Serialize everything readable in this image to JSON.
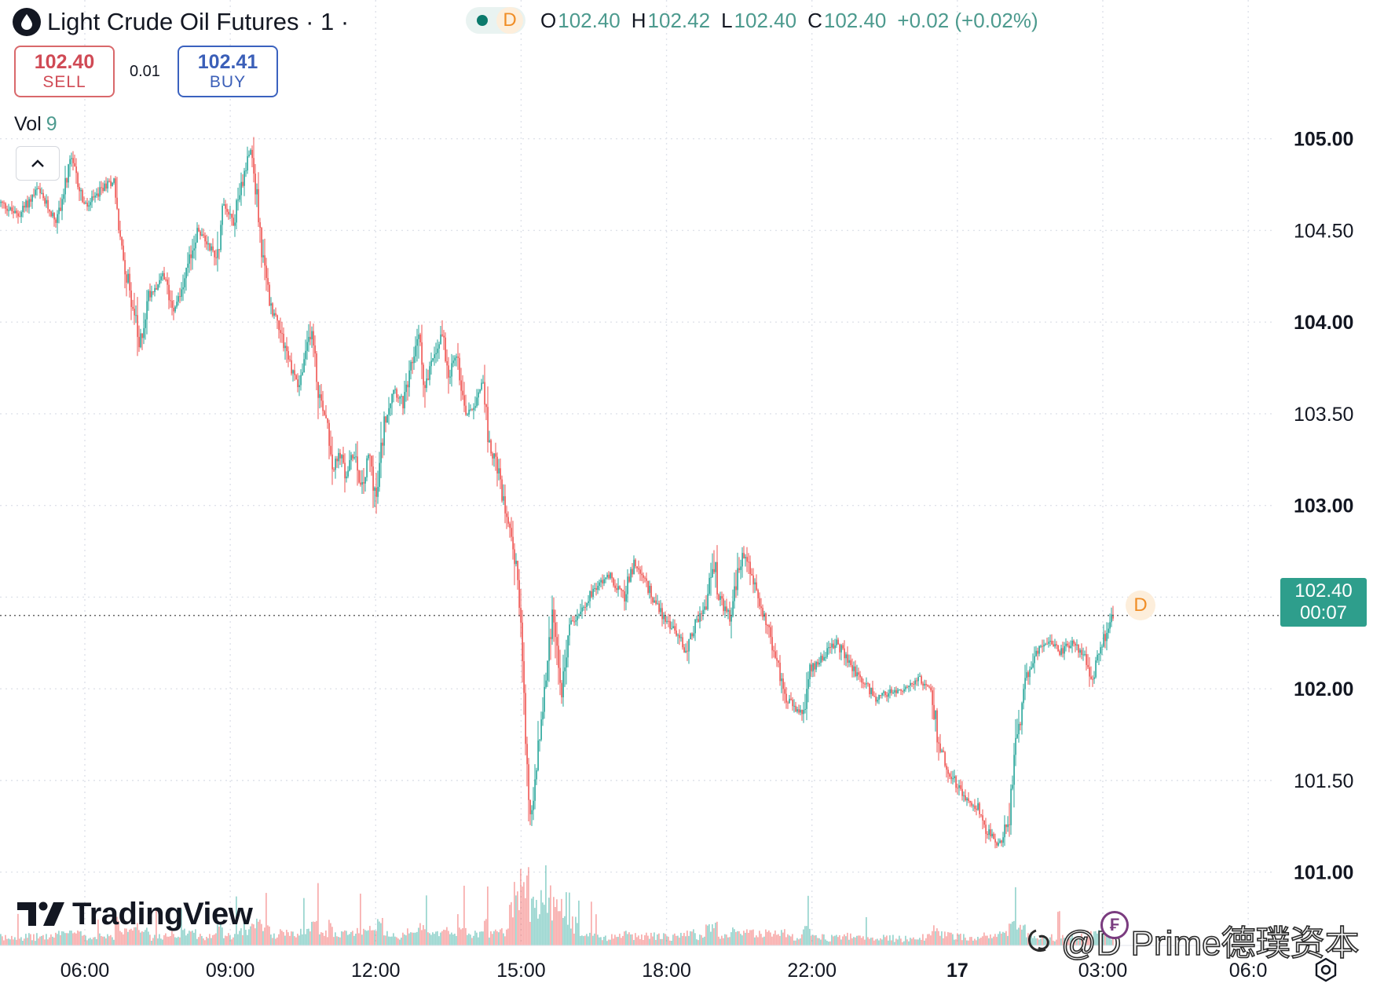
{
  "header": {
    "title": "Light Crude Oil Futures · 1 ·",
    "status_badge": "D",
    "ohlc": {
      "o_label": "O",
      "o": "102.40",
      "h_label": "H",
      "h": "102.42",
      "l_label": "L",
      "l": "102.40",
      "c_label": "C",
      "c": "102.40",
      "change": "+0.02 (+0.02%)"
    }
  },
  "trade": {
    "sell_price": "102.40",
    "sell_label": "SELL",
    "spread": "0.01",
    "buy_price": "102.41",
    "buy_label": "BUY"
  },
  "volume": {
    "label": "Vol",
    "value": "9"
  },
  "last_price": {
    "price": "102.40",
    "countdown": "00:07",
    "marker": "D"
  },
  "branding": {
    "logo_text": "TradingView"
  },
  "watermark": {
    "text": "@D Prime德璞资本"
  },
  "colors": {
    "up": "#26a69a",
    "down": "#ef5350",
    "price_tag": "#2e9e8c",
    "sell": "#d04a55",
    "buy": "#3b5fb8"
  },
  "chart_data": {
    "type": "line",
    "title": "Light Crude Oil Futures · 1",
    "interval": "1 minute",
    "y_ticks": [
      "105.00",
      "104.50",
      "104.00",
      "103.50",
      "103.00",
      "102.50",
      "102.00",
      "101.50",
      "101.00"
    ],
    "y_ticks_bold": [
      "105.00",
      "104.00",
      "103.00",
      "102.00",
      "101.00"
    ],
    "ylim": [
      100.6,
      105.5
    ],
    "x_ticks": [
      "06:00",
      "09:00",
      "12:00",
      "15:00",
      "18:00",
      "22:00",
      "17",
      "03:00",
      "06:0"
    ],
    "x_ticks_bold": [
      "17"
    ],
    "x_tick_hours": [
      6,
      9,
      12,
      15,
      18,
      21,
      24,
      27,
      30
    ],
    "xlim_hours": [
      4.25,
      30.5
    ],
    "grid": true,
    "last_price": 102.4,
    "price_series": {
      "name": "close",
      "points": [
        [
          4.25,
          104.65
        ],
        [
          4.6,
          104.58
        ],
        [
          5.0,
          104.72
        ],
        [
          5.4,
          104.55
        ],
        [
          5.7,
          104.88
        ],
        [
          6.0,
          104.62
        ],
        [
          6.35,
          104.73
        ],
        [
          6.6,
          104.78
        ],
        [
          6.7,
          104.45
        ],
        [
          7.0,
          104.05
        ],
        [
          7.1,
          103.85
        ],
        [
          7.3,
          104.15
        ],
        [
          7.6,
          104.25
        ],
        [
          7.8,
          104.08
        ],
        [
          8.0,
          104.18
        ],
        [
          8.3,
          104.5
        ],
        [
          8.55,
          104.42
        ],
        [
          8.7,
          104.35
        ],
        [
          8.85,
          104.65
        ],
        [
          9.05,
          104.55
        ],
        [
          9.25,
          104.8
        ],
        [
          9.4,
          104.98
        ],
        [
          9.5,
          104.75
        ],
        [
          9.65,
          104.35
        ],
        [
          9.8,
          104.1
        ],
        [
          10.0,
          103.98
        ],
        [
          10.2,
          103.78
        ],
        [
          10.4,
          103.65
        ],
        [
          10.55,
          103.82
        ],
        [
          10.65,
          103.98
        ],
        [
          10.8,
          103.62
        ],
        [
          11.0,
          103.45
        ],
        [
          11.1,
          103.2
        ],
        [
          11.25,
          103.28
        ],
        [
          11.35,
          103.15
        ],
        [
          11.55,
          103.3
        ],
        [
          11.7,
          103.08
        ],
        [
          11.85,
          103.28
        ],
        [
          12.0,
          103.02
        ],
        [
          12.15,
          103.45
        ],
        [
          12.35,
          103.65
        ],
        [
          12.55,
          103.55
        ],
        [
          12.7,
          103.72
        ],
        [
          12.85,
          103.95
        ],
        [
          13.0,
          103.65
        ],
        [
          13.2,
          103.82
        ],
        [
          13.35,
          103.95
        ],
        [
          13.5,
          103.72
        ],
        [
          13.65,
          103.82
        ],
        [
          13.85,
          103.5
        ],
        [
          14.0,
          103.55
        ],
        [
          14.2,
          103.7
        ],
        [
          14.3,
          103.35
        ],
        [
          14.45,
          103.25
        ],
        [
          14.6,
          103.05
        ],
        [
          14.8,
          102.85
        ],
        [
          14.95,
          102.5
        ],
        [
          15.05,
          101.85
        ],
        [
          15.15,
          101.3
        ],
        [
          15.25,
          101.45
        ],
        [
          15.35,
          101.7
        ],
        [
          15.5,
          102.1
        ],
        [
          15.65,
          102.45
        ],
        [
          15.8,
          101.95
        ],
        [
          15.9,
          102.15
        ],
        [
          16.0,
          102.35
        ],
        [
          16.25,
          102.45
        ],
        [
          16.5,
          102.55
        ],
        [
          16.8,
          102.62
        ],
        [
          17.1,
          102.5
        ],
        [
          17.3,
          102.68
        ],
        [
          17.6,
          102.55
        ],
        [
          17.9,
          102.4
        ],
        [
          18.2,
          102.3
        ],
        [
          18.4,
          102.2
        ],
        [
          18.55,
          102.35
        ],
        [
          18.8,
          102.45
        ],
        [
          18.95,
          102.72
        ],
        [
          19.05,
          102.5
        ],
        [
          19.3,
          102.38
        ],
        [
          19.45,
          102.62
        ],
        [
          19.6,
          102.75
        ],
        [
          19.8,
          102.55
        ],
        [
          20.0,
          102.4
        ],
        [
          20.25,
          102.15
        ],
        [
          20.45,
          101.95
        ],
        [
          20.6,
          101.9
        ],
        [
          20.8,
          101.85
        ],
        [
          20.95,
          102.1
        ],
        [
          21.2,
          102.18
        ],
        [
          21.5,
          102.25
        ],
        [
          21.8,
          102.12
        ],
        [
          22.0,
          102.05
        ],
        [
          22.3,
          101.95
        ],
        [
          22.6,
          101.98
        ],
        [
          22.9,
          102.0
        ],
        [
          23.2,
          102.05
        ],
        [
          23.45,
          101.98
        ],
        [
          23.6,
          101.7
        ],
        [
          23.8,
          101.55
        ],
        [
          24.1,
          101.42
        ],
        [
          24.4,
          101.35
        ],
        [
          24.6,
          101.22
        ],
        [
          24.85,
          101.15
        ],
        [
          25.05,
          101.3
        ],
        [
          25.2,
          101.7
        ],
        [
          25.4,
          102.05
        ],
        [
          25.6,
          102.2
        ],
        [
          25.85,
          102.25
        ],
        [
          26.1,
          102.2
        ],
        [
          26.35,
          102.25
        ],
        [
          26.6,
          102.18
        ],
        [
          26.75,
          102.05
        ],
        [
          26.9,
          102.18
        ],
        [
          27.1,
          102.35
        ],
        [
          27.2,
          102.4
        ]
      ]
    }
  }
}
